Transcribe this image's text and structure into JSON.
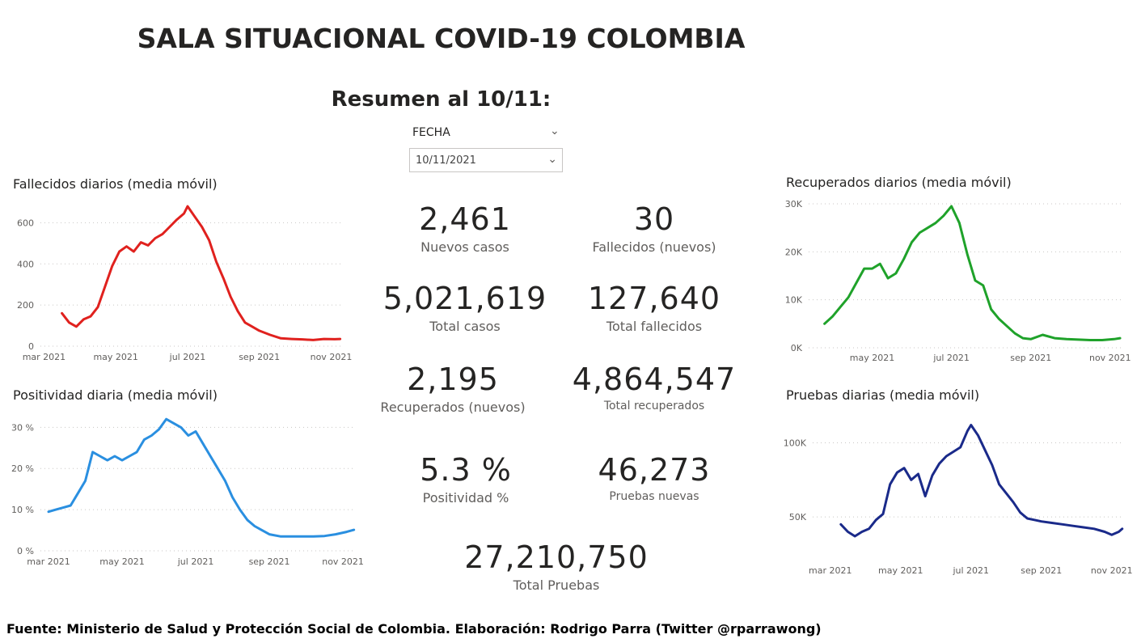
{
  "header": {
    "title": "SALA SITUACIONAL COVID-19 COLOMBIA",
    "subtitle": "Resumen al 10/11:"
  },
  "slicer": {
    "label": "FECHA",
    "value": "10/11/2021"
  },
  "kpis": {
    "nuevos_casos": {
      "value": "2,461",
      "label": "Nuevos casos"
    },
    "fallecidos_nuevos": {
      "value": "30",
      "label": "Fallecidos (nuevos)"
    },
    "total_casos": {
      "value": "5,021,619",
      "label": "Total casos"
    },
    "total_fallecidos": {
      "value": "127,640",
      "label": "Total fallecidos"
    },
    "recuperados_nuevos": {
      "value": "2,195",
      "label": "Recuperados (nuevos)"
    },
    "total_recuperados": {
      "value": "4,864,547",
      "label": "Total recuperados"
    },
    "positividad": {
      "value": "5.3 %",
      "label": "Positividad %"
    },
    "pruebas_nuevas": {
      "value": "46,273",
      "label": "Pruebas nuevas"
    },
    "total_pruebas": {
      "value": "27,210,750",
      "label": "Total Pruebas"
    }
  },
  "footer": {
    "source": "Fuente: Ministerio de Salud y Protección Social de Colombia. Elaboración: Rodrigo Parra (Twitter @rparrawong)"
  },
  "colors": {
    "fallecidos": "#e0211e",
    "positividad": "#2a8fe0",
    "recuperados": "#1fa22a",
    "pruebas": "#1a2a8a",
    "grid": "#c8c6c4"
  },
  "chart_data": [
    {
      "id": "fallecidos",
      "type": "line",
      "title": "Fallecidos diarios (media móvil)",
      "x_ticks": [
        {
          "x": 2,
          "label": "mar 2021"
        },
        {
          "x": 4,
          "label": "may 2021"
        },
        {
          "x": 6,
          "label": "jul 2021"
        },
        {
          "x": 8,
          "label": "sep 2021"
        },
        {
          "x": 10,
          "label": "nov 2021"
        }
      ],
      "y_ticks": [
        {
          "v": 0,
          "label": "0"
        },
        {
          "v": 200,
          "label": "200"
        },
        {
          "v": 400,
          "label": "400"
        },
        {
          "v": 600,
          "label": "600"
        }
      ],
      "xlim": [
        1.9,
        10.35
      ],
      "ylim": [
        0,
        700
      ],
      "x": [
        2.5,
        2.7,
        2.9,
        3.1,
        3.3,
        3.5,
        3.7,
        3.9,
        4.1,
        4.3,
        4.5,
        4.7,
        4.9,
        5.1,
        5.3,
        5.5,
        5.7,
        5.9,
        6.0,
        6.2,
        6.4,
        6.6,
        6.8,
        7.0,
        7.2,
        7.4,
        7.6,
        7.8,
        8.0,
        8.3,
        8.6,
        8.9,
        9.2,
        9.5,
        9.8,
        10.1,
        10.25
      ],
      "values": [
        160,
        115,
        95,
        130,
        145,
        190,
        290,
        390,
        460,
        485,
        460,
        505,
        490,
        525,
        545,
        580,
        615,
        645,
        680,
        630,
        580,
        515,
        410,
        330,
        240,
        170,
        115,
        95,
        75,
        55,
        38,
        35,
        33,
        30,
        35,
        34,
        35
      ]
    },
    {
      "id": "positividad",
      "type": "line",
      "title": "Positividad diaria (media móvil)",
      "x_ticks": [
        {
          "x": 2,
          "label": "mar 2021"
        },
        {
          "x": 4,
          "label": "may 2021"
        },
        {
          "x": 6,
          "label": "jul 2021"
        },
        {
          "x": 8,
          "label": "sep 2021"
        },
        {
          "x": 10,
          "label": "nov 2021"
        }
      ],
      "y_ticks": [
        {
          "v": 0,
          "label": "0 %"
        },
        {
          "v": 10,
          "label": "10 %"
        },
        {
          "v": 20,
          "label": "20 %"
        },
        {
          "v": 30,
          "label": "30 %"
        }
      ],
      "xlim": [
        1.78,
        10.35
      ],
      "ylim": [
        0,
        34
      ],
      "x": [
        2.0,
        2.2,
        2.4,
        2.6,
        2.8,
        3.0,
        3.2,
        3.4,
        3.6,
        3.8,
        4.0,
        4.2,
        4.4,
        4.6,
        4.8,
        5.0,
        5.2,
        5.4,
        5.6,
        5.8,
        6.0,
        6.2,
        6.4,
        6.6,
        6.8,
        7.0,
        7.2,
        7.4,
        7.6,
        7.8,
        8.0,
        8.3,
        8.6,
        8.9,
        9.2,
        9.5,
        9.8,
        10.1,
        10.3
      ],
      "values": [
        9.5,
        10,
        10.5,
        11,
        14,
        17,
        24,
        23,
        22,
        23,
        22,
        23,
        24,
        27,
        28,
        29.5,
        32,
        31,
        30,
        28,
        29,
        26,
        23,
        20,
        17,
        13,
        10,
        7.5,
        6,
        5,
        4,
        3.5,
        3.5,
        3.5,
        3.5,
        3.6,
        4,
        4.6,
        5.1
      ]
    },
    {
      "id": "recuperados",
      "type": "line",
      "title": "Recuperados diarios (media móvil)",
      "x_ticks": [
        {
          "x": 4,
          "label": "may 2021"
        },
        {
          "x": 6,
          "label": "jul 2021"
        },
        {
          "x": 8,
          "label": "sep 2021"
        },
        {
          "x": 10,
          "label": "nov 2021"
        }
      ],
      "y_ticks": [
        {
          "v": 0,
          "label": "0K"
        },
        {
          "v": 10000,
          "label": "10K"
        },
        {
          "v": 20000,
          "label": "20K"
        },
        {
          "v": 30000,
          "label": "30K"
        }
      ],
      "xlim": [
        2.4,
        10.35
      ],
      "ylim": [
        0,
        30000
      ],
      "x": [
        2.8,
        3.0,
        3.2,
        3.4,
        3.6,
        3.8,
        4.0,
        4.2,
        4.4,
        4.6,
        4.8,
        5.0,
        5.2,
        5.4,
        5.6,
        5.8,
        6.0,
        6.2,
        6.4,
        6.6,
        6.8,
        7.0,
        7.2,
        7.4,
        7.6,
        7.8,
        8.0,
        8.3,
        8.6,
        8.9,
        9.2,
        9.5,
        9.8,
        10.1,
        10.25
      ],
      "values": [
        5000,
        6500,
        8500,
        10500,
        13500,
        16500,
        16500,
        17500,
        14500,
        15500,
        18500,
        22000,
        24000,
        25000,
        26000,
        27500,
        29500,
        26000,
        19500,
        14000,
        13000,
        8000,
        6000,
        4500,
        3000,
        2000,
        1800,
        2700,
        2000,
        1800,
        1700,
        1600,
        1600,
        1800,
        2000
      ]
    },
    {
      "id": "pruebas",
      "type": "line",
      "title": "Pruebas diarias (media móvil)",
      "x_ticks": [
        {
          "x": 2,
          "label": "mar 2021"
        },
        {
          "x": 4,
          "label": "may 2021"
        },
        {
          "x": 6,
          "label": "jul 2021"
        },
        {
          "x": 8,
          "label": "sep 2021"
        },
        {
          "x": 10,
          "label": "nov 2021"
        }
      ],
      "y_ticks": [
        {
          "v": 50000,
          "label": "50K"
        },
        {
          "v": 100000,
          "label": "100K"
        }
      ],
      "xlim": [
        1.5,
        10.35
      ],
      "ylim": [
        25000,
        115000
      ],
      "x": [
        2.3,
        2.5,
        2.7,
        2.9,
        3.1,
        3.3,
        3.5,
        3.7,
        3.9,
        4.1,
        4.3,
        4.5,
        4.7,
        4.9,
        5.1,
        5.3,
        5.5,
        5.7,
        5.9,
        6.0,
        6.2,
        6.4,
        6.6,
        6.8,
        7.0,
        7.2,
        7.4,
        7.6,
        7.8,
        8.0,
        8.3,
        8.6,
        8.9,
        9.2,
        9.5,
        9.8,
        10.0,
        10.2,
        10.3
      ],
      "values": [
        45000,
        40000,
        37000,
        40000,
        42000,
        48000,
        52000,
        72000,
        80000,
        83000,
        75000,
        79000,
        64000,
        78000,
        86000,
        91000,
        94000,
        97000,
        108000,
        112000,
        105000,
        95000,
        85000,
        72000,
        66000,
        60000,
        53000,
        49000,
        48000,
        47000,
        46000,
        45000,
        44000,
        43000,
        42000,
        40000,
        38000,
        40000,
        42000
      ]
    }
  ]
}
